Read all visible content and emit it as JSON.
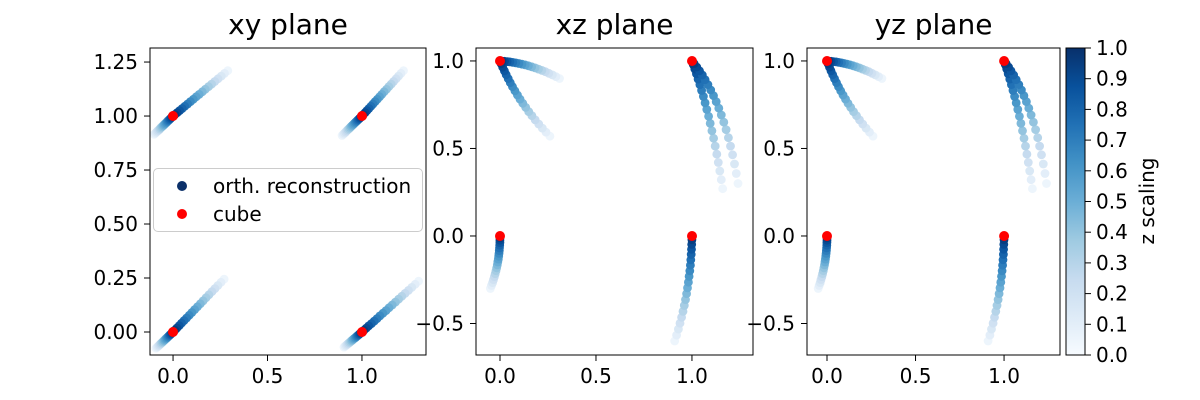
{
  "legend": {
    "items": [
      {
        "label": "orth. reconstruction",
        "color": "#0b3069"
      },
      {
        "label": "cube",
        "color": "#ff0000"
      }
    ]
  },
  "colorbar": {
    "label": "z scaling",
    "vmin": 0.0,
    "vmax": 1.0,
    "tick_values": [
      0.0,
      0.1,
      0.2,
      0.3,
      0.4,
      0.5,
      0.6,
      0.7,
      0.8,
      0.9,
      1.0
    ],
    "tick_labels": [
      "0.0",
      "0.1",
      "0.2",
      "0.3",
      "0.4",
      "0.5",
      "0.6",
      "0.7",
      "0.8",
      "0.9",
      "1.0"
    ],
    "stops": [
      [
        0.0,
        "#f7fbff"
      ],
      [
        0.125,
        "#deebf7"
      ],
      [
        0.25,
        "#c6dbef"
      ],
      [
        0.375,
        "#9ecae1"
      ],
      [
        0.5,
        "#6baed6"
      ],
      [
        0.625,
        "#4292c6"
      ],
      [
        0.75,
        "#2171b5"
      ],
      [
        0.875,
        "#08519c"
      ],
      [
        1.0,
        "#08306b"
      ]
    ]
  },
  "chart_data": {
    "type": "scatter",
    "colormap": "Blues",
    "point_color_meaning": "z scaling value mapped through Blues colormap",
    "points_per_trail": 20,
    "s_range": [
      0.05,
      1.0
    ],
    "spacing_exponent": 1.15,
    "cube_color": "#ff0000",
    "panels": [
      {
        "id": "xy",
        "title": "xy plane",
        "xlim": [
          -0.122,
          1.339
        ],
        "ylim": [
          -0.1065,
          1.315
        ],
        "xticks": {
          "values": [
            0.0,
            0.5,
            1.0
          ],
          "labels": [
            "0.0",
            "0.5",
            "1.0"
          ]
        },
        "yticks": {
          "values": [
            0.0,
            0.25,
            0.5,
            0.75,
            1.0,
            1.25
          ],
          "labels": [
            "0.00",
            "0.25",
            "0.50",
            "0.75",
            "1.00",
            "1.25"
          ]
        },
        "cube_points": [
          [
            0,
            0
          ],
          [
            0,
            1
          ],
          [
            1,
            0
          ],
          [
            1,
            1
          ]
        ],
        "trails": [
          {
            "start": [
              0,
              1
            ],
            "ctrl": [
              0.145,
              1.105
            ],
            "end": [
              0.29,
              1.21
            ]
          },
          {
            "start": [
              0,
              1
            ],
            "ctrl": [
              -0.05,
              0.957
            ],
            "end": [
              -0.1,
              0.915
            ]
          },
          {
            "start": [
              1,
              1
            ],
            "ctrl": [
              1.11,
              1.105
            ],
            "end": [
              1.22,
              1.21
            ]
          },
          {
            "start": [
              1,
              1
            ],
            "ctrl": [
              0.947,
              0.955
            ],
            "end": [
              0.895,
              0.91
            ]
          },
          {
            "start": [
              0,
              0
            ],
            "ctrl": [
              0.135,
              0.122
            ],
            "end": [
              0.27,
              0.245
            ]
          },
          {
            "start": [
              0,
              0
            ],
            "ctrl": [
              -0.045,
              -0.038
            ],
            "end": [
              -0.09,
              -0.075
            ]
          },
          {
            "start": [
              1,
              0
            ],
            "ctrl": [
              1.15,
              0.117
            ],
            "end": [
              1.3,
              0.235
            ]
          },
          {
            "start": [
              1,
              0
            ],
            "ctrl": [
              0.953,
              -0.035
            ],
            "end": [
              0.905,
              -0.07
            ]
          }
        ]
      },
      {
        "id": "xz",
        "title": "xz plane",
        "xlim": [
          -0.125,
          1.318
        ],
        "ylim": [
          -0.68,
          1.074
        ],
        "xticks": {
          "values": [
            0.0,
            0.5,
            1.0
          ],
          "labels": [
            "0.0",
            "0.5",
            "1.0"
          ]
        },
        "yticks": {
          "values": [
            -0.5,
            0.0,
            0.5,
            1.0
          ],
          "labels": [
            "−0.5",
            "0.0",
            "0.5",
            "1.0"
          ]
        },
        "cube_points": [
          [
            0,
            0
          ],
          [
            0,
            1
          ],
          [
            1,
            0
          ],
          [
            1,
            1
          ]
        ],
        "trails": [
          {
            "start": [
              0,
              1
            ],
            "ctrl": [
              0.155,
              0.99
            ],
            "end": [
              0.31,
              0.9
            ]
          },
          {
            "start": [
              0,
              1
            ],
            "ctrl": [
              0.09,
              0.76
            ],
            "end": [
              0.26,
              0.57
            ]
          },
          {
            "start": [
              1,
              1
            ],
            "ctrl": [
              1.1,
              0.7
            ],
            "end": [
              1.16,
              0.27
            ]
          },
          {
            "start": [
              1,
              1
            ],
            "ctrl": [
              1.17,
              0.78
            ],
            "end": [
              1.24,
              0.3
            ]
          },
          {
            "start": [
              0,
              0
            ],
            "ctrl": [
              0.0,
              -0.16
            ],
            "end": [
              -0.05,
              -0.3
            ]
          },
          {
            "start": [
              1,
              0
            ],
            "ctrl": [
              0.995,
              -0.32
            ],
            "end": [
              0.91,
              -0.6
            ]
          }
        ]
      },
      {
        "id": "yz",
        "title": "yz plane",
        "xlim": [
          -0.113,
          1.316
        ],
        "ylim": [
          -0.68,
          1.074
        ],
        "xticks": {
          "values": [
            0.0,
            0.5,
            1.0
          ],
          "labels": [
            "0.0",
            "0.5",
            "1.0"
          ]
        },
        "yticks": {
          "values": [
            -0.5,
            0.0,
            0.5,
            1.0
          ],
          "labels": [
            "−0.5",
            "0.0",
            "0.5",
            "1.0"
          ]
        },
        "cube_points": [
          [
            0,
            0
          ],
          [
            0,
            1
          ],
          [
            1,
            0
          ],
          [
            1,
            1
          ]
        ],
        "trails": [
          {
            "start": [
              0,
              1
            ],
            "ctrl": [
              0.155,
              0.99
            ],
            "end": [
              0.31,
              0.9
            ]
          },
          {
            "start": [
              0,
              1
            ],
            "ctrl": [
              0.09,
              0.76
            ],
            "end": [
              0.26,
              0.57
            ]
          },
          {
            "start": [
              1,
              1
            ],
            "ctrl": [
              1.1,
              0.7
            ],
            "end": [
              1.16,
              0.27
            ]
          },
          {
            "start": [
              1,
              1
            ],
            "ctrl": [
              1.17,
              0.78
            ],
            "end": [
              1.24,
              0.3
            ]
          },
          {
            "start": [
              0,
              0
            ],
            "ctrl": [
              0.0,
              -0.16
            ],
            "end": [
              -0.05,
              -0.3
            ]
          },
          {
            "start": [
              1,
              0
            ],
            "ctrl": [
              0.995,
              -0.32
            ],
            "end": [
              0.91,
              -0.6
            ]
          }
        ]
      }
    ]
  }
}
